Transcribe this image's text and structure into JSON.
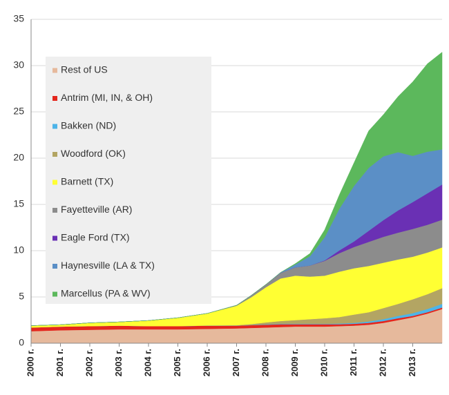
{
  "chart_data": {
    "type": "stacked_area",
    "x": [
      2000,
      2001,
      2002,
      2003,
      2004,
      2005,
      2006,
      2007,
      2007.5,
      2008,
      2008.5,
      2009,
      2009.5,
      2010,
      2010.5,
      2011,
      2011.5,
      2012,
      2012.5,
      2013,
      2013.5,
      2014
    ],
    "xlim": [
      2000,
      2014
    ],
    "xticks": [
      {
        "value": 2000,
        "label": "2000 г."
      },
      {
        "value": 2001,
        "label": "2001 г."
      },
      {
        "value": 2002,
        "label": "2002 г."
      },
      {
        "value": 2003,
        "label": "2003 г."
      },
      {
        "value": 2004,
        "label": "2004 г."
      },
      {
        "value": 2005,
        "label": "2005 г."
      },
      {
        "value": 2006,
        "label": "2006 г."
      },
      {
        "value": 2007,
        "label": "2007 г."
      },
      {
        "value": 2008,
        "label": "2008 г."
      },
      {
        "value": 2009,
        "label": "2009 г."
      },
      {
        "value": 2010,
        "label": "2010 г."
      },
      {
        "value": 2011,
        "label": "2011 г."
      },
      {
        "value": 2012,
        "label": "2012 г."
      },
      {
        "value": 2013,
        "label": "2013 г."
      }
    ],
    "ylim": [
      0,
      35
    ],
    "yticks": [
      0,
      5,
      10,
      15,
      20,
      25,
      30,
      35
    ],
    "grid": true,
    "legend": "upper left",
    "series": [
      {
        "name": "Rest of US",
        "color": "#e6b99c",
        "values": [
          1.3,
          1.4,
          1.45,
          1.5,
          1.5,
          1.5,
          1.55,
          1.6,
          1.65,
          1.7,
          1.75,
          1.8,
          1.8,
          1.8,
          1.85,
          1.9,
          2.0,
          2.2,
          2.5,
          2.8,
          3.2,
          3.7
        ]
      },
      {
        "name": "Antrim (MI, IN, & OH)",
        "color": "#e4261d",
        "values": [
          0.4,
          0.4,
          0.4,
          0.4,
          0.35,
          0.35,
          0.35,
          0.3,
          0.3,
          0.3,
          0.3,
          0.25,
          0.25,
          0.25,
          0.2,
          0.2,
          0.2,
          0.2,
          0.2,
          0.15,
          0.15,
          0.15
        ]
      },
      {
        "name": "Bakken (ND)",
        "color": "#4db4e8",
        "values": [
          0,
          0,
          0,
          0,
          0,
          0,
          0,
          0,
          0.02,
          0.05,
          0.05,
          0.05,
          0.05,
          0.05,
          0.08,
          0.1,
          0.15,
          0.2,
          0.25,
          0.3,
          0.35,
          0.4
        ]
      },
      {
        "name": "Woodford (OK)",
        "color": "#b3a563",
        "values": [
          0,
          0,
          0,
          0,
          0,
          0,
          0.02,
          0.05,
          0.1,
          0.2,
          0.3,
          0.4,
          0.5,
          0.6,
          0.7,
          0.9,
          1.0,
          1.2,
          1.3,
          1.5,
          1.6,
          1.7
        ]
      },
      {
        "name": "Barnett (TX)",
        "color": "#ffff33",
        "values": [
          0.2,
          0.2,
          0.35,
          0.4,
          0.6,
          0.9,
          1.3,
          2.1,
          2.9,
          3.8,
          4.6,
          4.8,
          4.6,
          4.6,
          4.9,
          5.0,
          5.0,
          4.9,
          4.8,
          4.6,
          4.5,
          4.4
        ]
      },
      {
        "name": "Fayetteville (AR)",
        "color": "#8c8c8c",
        "values": [
          0,
          0,
          0,
          0,
          0,
          0,
          0,
          0.05,
          0.2,
          0.3,
          0.6,
          0.9,
          1.2,
          1.6,
          2.0,
          2.3,
          2.6,
          2.8,
          2.9,
          3.0,
          3.0,
          3.0
        ]
      },
      {
        "name": "Eagle Ford (TX)",
        "color": "#6a30b4",
        "values": [
          0,
          0,
          0,
          0,
          0,
          0,
          0,
          0,
          0,
          0,
          0,
          0,
          0,
          0.05,
          0.3,
          0.6,
          1.2,
          1.8,
          2.4,
          2.9,
          3.4,
          3.8
        ]
      },
      {
        "name": "Haynesville (LA & TX)",
        "color": "#5b8fc6",
        "values": [
          0,
          0,
          0,
          0,
          0,
          0,
          0,
          0,
          0,
          0,
          0.05,
          0.3,
          1.0,
          2.5,
          4.5,
          6.0,
          6.8,
          6.9,
          6.3,
          5.0,
          4.5,
          3.8
        ]
      },
      {
        "name": "Marcellus (PA & WV)",
        "color": "#5cb85c",
        "values": [
          0,
          0,
          0,
          0,
          0,
          0,
          0,
          0,
          0,
          0,
          0,
          0.1,
          0.3,
          0.8,
          1.5,
          2.5,
          4.0,
          4.5,
          6.0,
          8.0,
          9.5,
          10.5
        ]
      }
    ]
  }
}
